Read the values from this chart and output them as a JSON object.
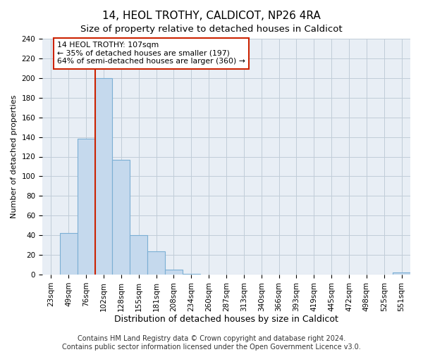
{
  "title": "14, HEOL TROTHY, CALDICOT, NP26 4RA",
  "subtitle": "Size of property relative to detached houses in Caldicot",
  "xlabel": "Distribution of detached houses by size in Caldicot",
  "ylabel": "Number of detached properties",
  "bar_labels": [
    "23sqm",
    "49sqm",
    "76sqm",
    "102sqm",
    "128sqm",
    "155sqm",
    "181sqm",
    "208sqm",
    "234sqm",
    "260sqm",
    "287sqm",
    "313sqm",
    "340sqm",
    "366sqm",
    "393sqm",
    "419sqm",
    "445sqm",
    "472sqm",
    "498sqm",
    "525sqm",
    "551sqm"
  ],
  "bar_values": [
    0,
    42,
    138,
    200,
    117,
    40,
    24,
    5,
    1,
    0,
    0,
    0,
    0,
    0,
    0,
    0,
    0,
    0,
    0,
    0,
    2
  ],
  "bar_color": "#c5d9ed",
  "bar_edge_color": "#7bafd4",
  "property_line_index": 3,
  "annotation_title": "14 HEOL TROTHY: 107sqm",
  "annotation_line1": "← 35% of detached houses are smaller (197)",
  "annotation_line2": "64% of semi-detached houses are larger (360) →",
  "annotation_box_color": "#ffffff",
  "annotation_box_edge_color": "#cc2200",
  "ylim": [
    0,
    240
  ],
  "yticks": [
    0,
    20,
    40,
    60,
    80,
    100,
    120,
    140,
    160,
    180,
    200,
    220,
    240
  ],
  "footer_line1": "Contains HM Land Registry data © Crown copyright and database right 2024.",
  "footer_line2": "Contains public sector information licensed under the Open Government Licence v3.0.",
  "title_fontsize": 11,
  "subtitle_fontsize": 9.5,
  "xlabel_fontsize": 9,
  "ylabel_fontsize": 8,
  "tick_fontsize": 7.5,
  "footer_fontsize": 7,
  "bg_color": "#e8eef5"
}
